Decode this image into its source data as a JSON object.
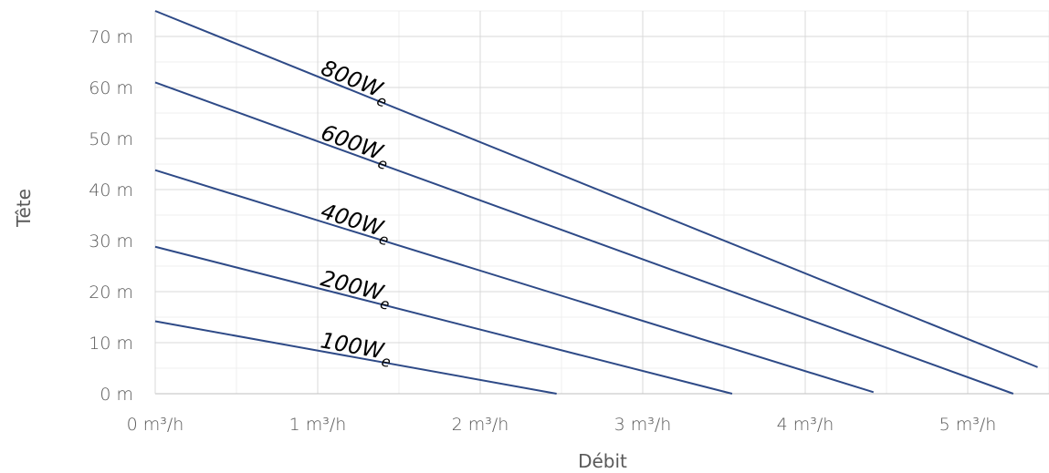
{
  "chart_data": {
    "type": "line",
    "xlabel": "Débit",
    "ylabel": "Tête",
    "xlim": [
      0,
      5.5
    ],
    "ylim": [
      0,
      75
    ],
    "x_ticks": [
      0,
      1,
      2,
      3,
      4,
      5
    ],
    "x_tick_labels": [
      "0 m³/h",
      "1 m³/h",
      "2 m³/h",
      "3 m³/h",
      "4 m³/h",
      "5 m³/h"
    ],
    "y_ticks": [
      0,
      10,
      20,
      30,
      40,
      50,
      60,
      70
    ],
    "y_tick_labels": [
      "0 m",
      "10 m",
      "20 m",
      "30 m",
      "40 m",
      "50 m",
      "60 m",
      "70 m"
    ],
    "grid": {
      "major": true,
      "minor": true
    },
    "line_color": "#2e4a87",
    "series": [
      {
        "name": "100W",
        "name_sub": "e",
        "x": [
          0,
          2.47
        ],
        "y": [
          14.2,
          0
        ]
      },
      {
        "name": "200W",
        "name_sub": "e",
        "x": [
          0,
          3.55
        ],
        "y": [
          28.8,
          0
        ]
      },
      {
        "name": "400W",
        "name_sub": "e",
        "x": [
          0,
          4.42
        ],
        "y": [
          43.8,
          0.3
        ]
      },
      {
        "name": "600W",
        "name_sub": "e",
        "x": [
          0,
          5.28
        ],
        "y": [
          61.0,
          0
        ]
      },
      {
        "name": "800W",
        "name_sub": "e",
        "x": [
          0,
          5.43
        ],
        "y": [
          75.0,
          5.2
        ]
      }
    ]
  }
}
